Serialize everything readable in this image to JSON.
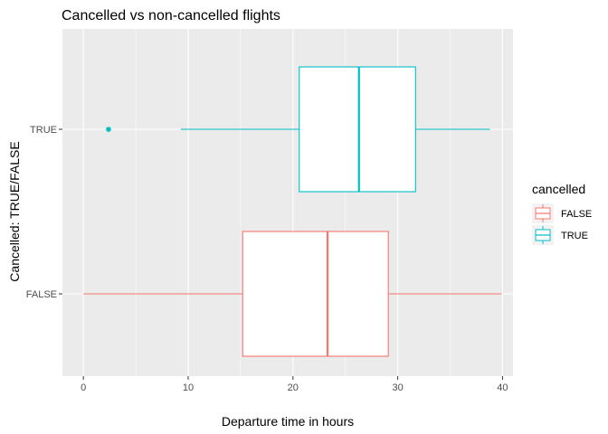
{
  "chart_data": {
    "type": "boxplot",
    "orientation": "horizontal",
    "title": "Cancelled vs non-cancelled flights",
    "xlabel": "Departure time in hours",
    "ylabel": "Cancelled: TRUE/FALSE",
    "xlim": [
      -2,
      41
    ],
    "xticks": [
      0,
      10,
      20,
      30,
      40
    ],
    "categories": [
      "FALSE",
      "TRUE"
    ],
    "grid": true,
    "legend": {
      "title": "cancelled",
      "position": "right",
      "entries": [
        "FALSE",
        "TRUE"
      ]
    },
    "series": [
      {
        "name": "FALSE",
        "color": "#F8766D",
        "whisker_low": 0.0,
        "q1": 15.2,
        "median": 23.3,
        "q3": 29.1,
        "whisker_high": 39.9,
        "outliers": []
      },
      {
        "name": "TRUE",
        "color": "#00BFC4",
        "whisker_low": 9.3,
        "q1": 20.6,
        "median": 26.3,
        "q3": 31.7,
        "whisker_high": 38.8,
        "outliers": [
          2.4
        ]
      }
    ],
    "background_color": "#EBEBEB",
    "grid_color": "#FFFFFF"
  }
}
